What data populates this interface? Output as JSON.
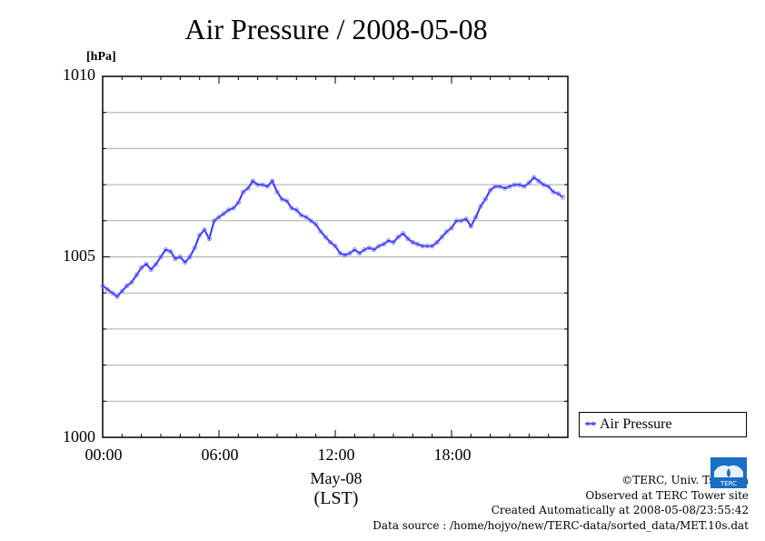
{
  "title": "Air Pressure / 2008-05-08",
  "chart_data": {
    "type": "line",
    "title": "Air Pressure / 2008-05-08",
    "ylabel": "[hPa]",
    "xlabel_date": "May-08",
    "xlabel_unit": "(LST)",
    "ylim": [
      1000,
      1010
    ],
    "y_ticks": [
      "1000",
      "1005",
      "1010"
    ],
    "xlim": [
      0,
      24
    ],
    "x_ticks": [
      {
        "x": 0,
        "label": "00:00"
      },
      {
        "x": 6,
        "label": "06:00"
      },
      {
        "x": 12,
        "label": "12:00"
      },
      {
        "x": 18,
        "label": "18:00"
      }
    ],
    "grid": true,
    "legend_position": "bottom-right",
    "series": [
      {
        "name": "Air Pressure",
        "color": "#3333ff",
        "x": [
          0.0,
          0.25,
          0.5,
          0.75,
          1.0,
          1.25,
          1.5,
          1.75,
          2.0,
          2.25,
          2.5,
          2.75,
          3.0,
          3.25,
          3.5,
          3.75,
          4.0,
          4.25,
          4.5,
          4.75,
          5.0,
          5.25,
          5.5,
          5.75,
          6.0,
          6.25,
          6.5,
          6.75,
          7.0,
          7.25,
          7.5,
          7.75,
          8.0,
          8.25,
          8.5,
          8.75,
          9.0,
          9.25,
          9.5,
          9.75,
          10.0,
          10.25,
          10.5,
          10.75,
          11.0,
          11.25,
          11.5,
          11.75,
          12.0,
          12.25,
          12.5,
          12.75,
          13.0,
          13.25,
          13.5,
          13.75,
          14.0,
          14.25,
          14.5,
          14.75,
          15.0,
          15.25,
          15.5,
          15.75,
          16.0,
          16.25,
          16.5,
          16.75,
          17.0,
          17.25,
          17.5,
          17.75,
          18.0,
          18.25,
          18.5,
          18.75,
          19.0,
          19.25,
          19.5,
          19.75,
          20.0,
          20.25,
          20.5,
          20.75,
          21.0,
          21.25,
          21.5,
          21.75,
          22.0,
          22.25,
          22.5,
          22.75,
          23.0,
          23.25,
          23.5,
          23.75
        ],
        "values": [
          1004.2,
          1004.1,
          1004.0,
          1003.9,
          1004.05,
          1004.2,
          1004.3,
          1004.5,
          1004.7,
          1004.8,
          1004.65,
          1004.8,
          1005.0,
          1005.2,
          1005.15,
          1004.95,
          1005.0,
          1004.85,
          1005.0,
          1005.25,
          1005.6,
          1005.75,
          1005.5,
          1006.0,
          1006.1,
          1006.2,
          1006.3,
          1006.35,
          1006.5,
          1006.8,
          1006.9,
          1007.1,
          1007.0,
          1007.0,
          1006.95,
          1007.1,
          1006.8,
          1006.6,
          1006.55,
          1006.35,
          1006.3,
          1006.15,
          1006.1,
          1006.0,
          1005.9,
          1005.7,
          1005.55,
          1005.4,
          1005.3,
          1005.1,
          1005.05,
          1005.1,
          1005.2,
          1005.1,
          1005.2,
          1005.25,
          1005.2,
          1005.3,
          1005.35,
          1005.45,
          1005.4,
          1005.55,
          1005.65,
          1005.5,
          1005.4,
          1005.35,
          1005.3,
          1005.3,
          1005.3,
          1005.4,
          1005.55,
          1005.7,
          1005.8,
          1006.0,
          1006.0,
          1006.05,
          1005.85,
          1006.1,
          1006.4,
          1006.6,
          1006.85,
          1006.95,
          1006.95,
          1006.9,
          1006.95,
          1007.0,
          1007.0,
          1006.95,
          1007.05,
          1007.2,
          1007.1,
          1007.0,
          1006.95,
          1006.8,
          1006.75,
          1006.65
        ]
      }
    ]
  },
  "legend": {
    "label": "Air Pressure"
  },
  "footer": {
    "line1": "©TERC, Univ. Tsukuba",
    "line2": "Observed at TERC Tower site",
    "line3": "Created Automatically at 2008-05-08/23:55:42",
    "line4": "Data source : /home/hojyo/new/TERC-data/sorted_data/MET.10s.dat"
  },
  "logo_text": "TERC"
}
